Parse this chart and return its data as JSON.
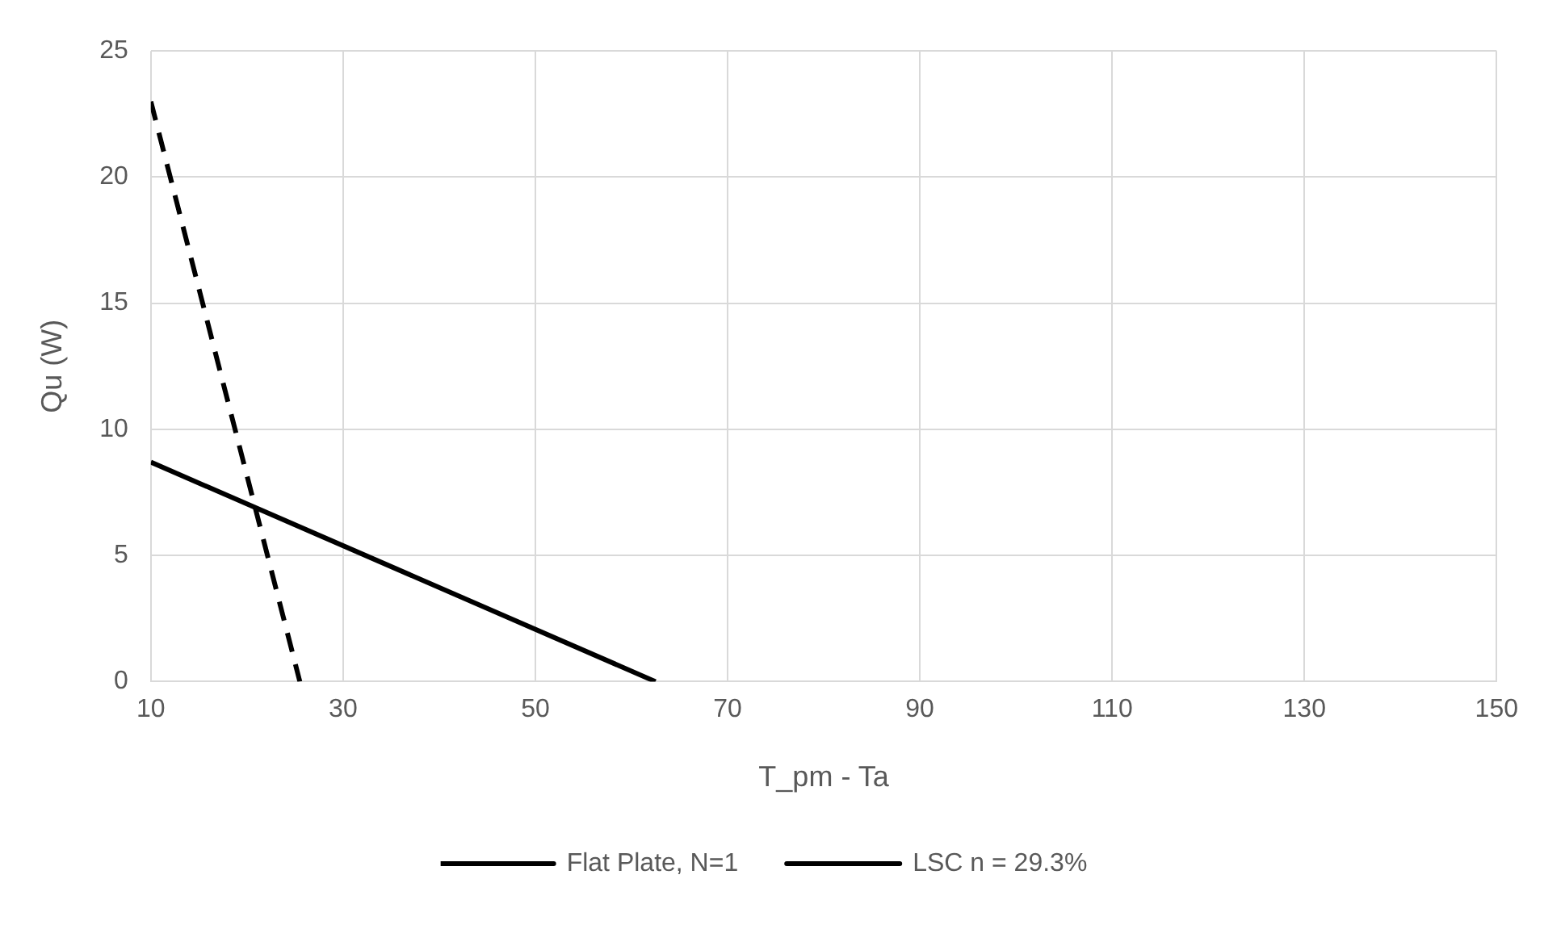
{
  "chart_data": {
    "type": "line",
    "xlabel": "T_pm - Ta",
    "ylabel": "Qu (W)",
    "xlim": [
      10,
      150
    ],
    "xticks": [
      10,
      30,
      50,
      70,
      90,
      110,
      130,
      150
    ],
    "ylim": [
      0,
      25
    ],
    "yticks": [
      0,
      5,
      10,
      15,
      20,
      25
    ],
    "grid": true,
    "legend": "bottom",
    "marker": "none",
    "series": [
      {
        "name": "Flat Plate, N=1",
        "color": "#000000",
        "line_style": "dashed",
        "x": [
          10,
          25.5
        ],
        "values": [
          23,
          0
        ]
      },
      {
        "name": "LSC n = 29.3%",
        "color": "#000000",
        "line_style": "solid",
        "x": [
          10,
          62.5
        ],
        "values": [
          8.7,
          0
        ]
      }
    ]
  }
}
